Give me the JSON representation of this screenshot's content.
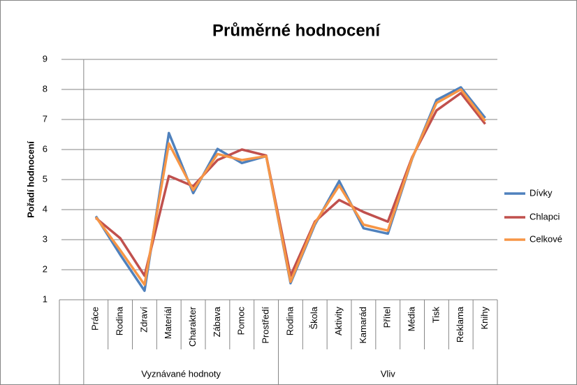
{
  "chart_data": {
    "type": "line",
    "title": "Průměrné hodnocení",
    "y_label": "Pořadí hodnocení",
    "categories": [
      null,
      "Práce",
      "Rodina",
      "Zdraví",
      "Materiál",
      "Charakter",
      "Zábava",
      "Pomoc",
      "Prostředí",
      "Rodina",
      "Škola",
      "Aktivity",
      "Kamarád",
      "Přítel",
      "Média",
      "Tisk",
      "Reklama",
      "Knihy"
    ],
    "groups": [
      {
        "label": "Vyznávané hodnoty",
        "span": 8
      },
      {
        "label": "Vliv",
        "span": 9
      }
    ],
    "series": [
      {
        "name": "Dívky",
        "color": "#4f81bd",
        "values": [
          null,
          3.78,
          2.5,
          1.3,
          6.55,
          4.55,
          6.02,
          5.55,
          5.78,
          1.55,
          3.5,
          4.95,
          3.38,
          3.2,
          5.7,
          7.65,
          8.07,
          7.05
        ]
      },
      {
        "name": "Chlapci",
        "color": "#c0504d",
        "values": [
          null,
          3.72,
          3.05,
          1.8,
          5.12,
          4.78,
          5.65,
          6.0,
          5.8,
          1.8,
          3.6,
          4.32,
          3.92,
          3.6,
          5.75,
          7.3,
          7.88,
          6.85
        ]
      },
      {
        "name": "Celkové",
        "color": "#f79646",
        "values": [
          null,
          3.75,
          2.65,
          1.5,
          6.2,
          4.65,
          5.85,
          5.65,
          5.78,
          1.6,
          3.55,
          4.8,
          3.5,
          3.3,
          5.72,
          7.55,
          8.0,
          6.95
        ]
      }
    ],
    "ylim": [
      1,
      9
    ],
    "yticks": [
      1,
      2,
      3,
      4,
      5,
      6,
      7,
      8,
      9
    ],
    "grid": true,
    "legend": "right"
  }
}
